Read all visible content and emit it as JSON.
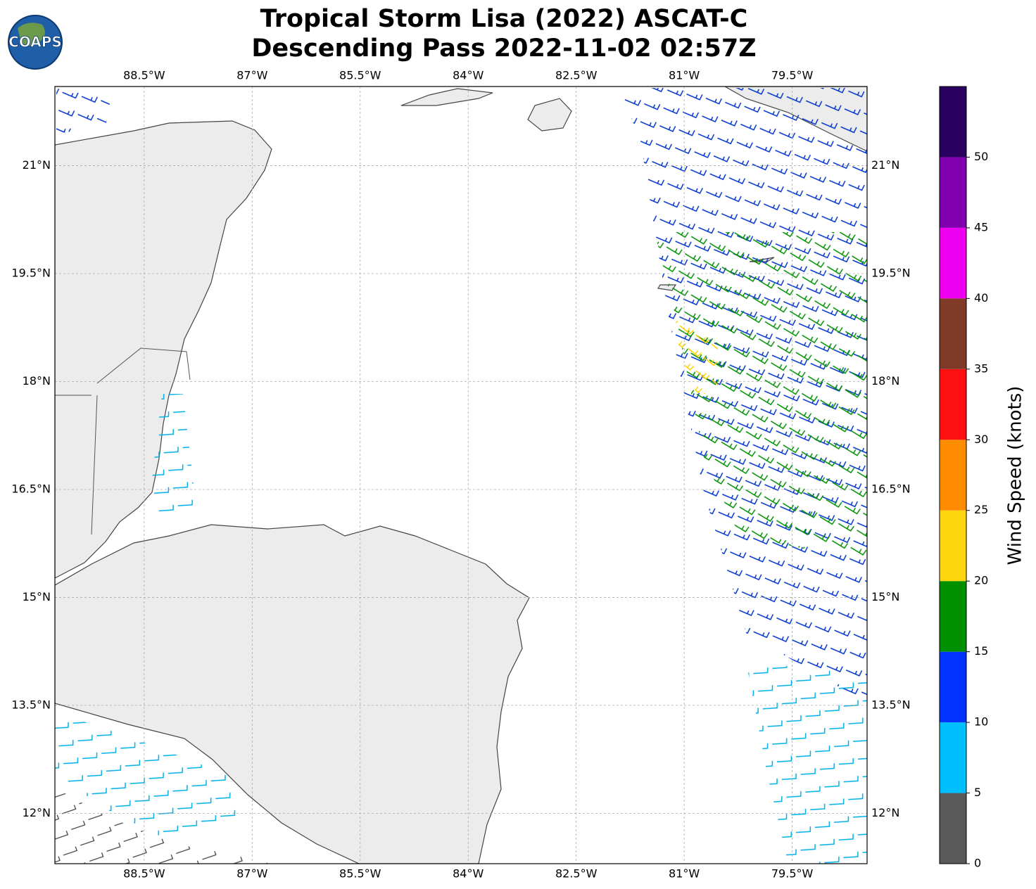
{
  "logo": {
    "text": "COAPS"
  },
  "title": [
    "Tropical Storm Lisa (2022) ASCAT-C",
    "Descending Pass 2022-11-02 02:57Z"
  ],
  "map": {
    "xlim": [
      -89.74,
      -78.46
    ],
    "ylim": [
      11.3,
      22.1
    ],
    "lon_ticks": [
      {
        "value": -88.5,
        "label": "88.5°W"
      },
      {
        "value": -87,
        "label": "87°W"
      },
      {
        "value": -85.5,
        "label": "85.5°W"
      },
      {
        "value": -84,
        "label": "84°W"
      },
      {
        "value": -82.5,
        "label": "82.5°W"
      },
      {
        "value": -81,
        "label": "81°W"
      },
      {
        "value": -79.5,
        "label": "79.5°W"
      }
    ],
    "lat_ticks": [
      {
        "value": 21,
        "label": "21°N"
      },
      {
        "value": 19.5,
        "label": "19.5°N"
      },
      {
        "value": 18,
        "label": "18°N"
      },
      {
        "value": 16.5,
        "label": "16.5°N"
      },
      {
        "value": 15,
        "label": "15°N"
      },
      {
        "value": 13.5,
        "label": "13.5°N"
      },
      {
        "value": 12,
        "label": "12°N"
      }
    ],
    "grid": true
  },
  "colorbar": {
    "label": "Wind Speed (knots)",
    "lim": [
      0,
      55
    ],
    "ticks": [
      0,
      5,
      10,
      15,
      20,
      25,
      30,
      35,
      40,
      45,
      50
    ],
    "colors": [
      "#595959",
      "#00bfff",
      "#0033ff",
      "#009000",
      "#ffd710",
      "#ff8c00",
      "#ff1010",
      "#7f3b28",
      "#f000f0",
      "#8000b0",
      "#2a0060"
    ]
  }
}
